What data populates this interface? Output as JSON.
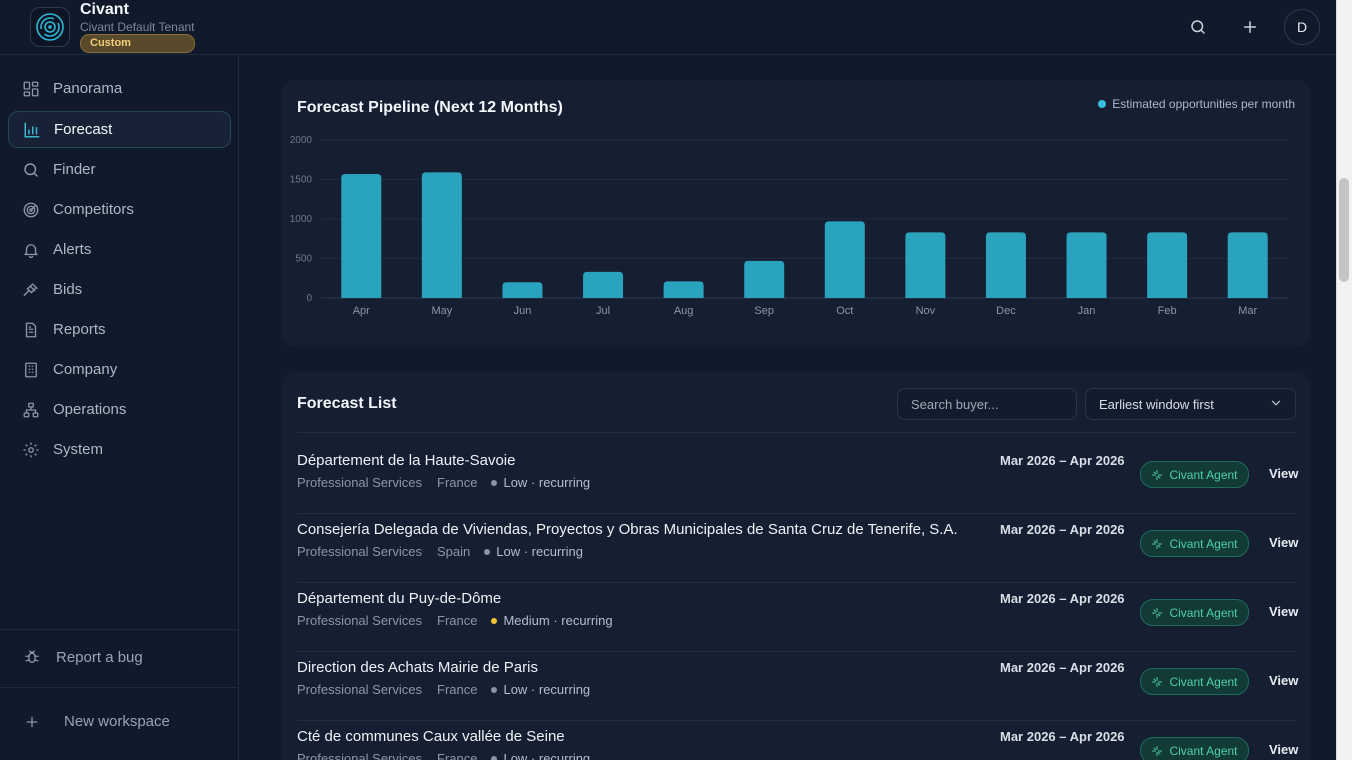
{
  "header": {
    "brand": "Civant",
    "tenant": "Civant Default Tenant",
    "plan_badge": "Custom",
    "avatar_initial": "D"
  },
  "sidebar": {
    "items": [
      {
        "label": "Panorama",
        "icon": "grid-icon",
        "active": false
      },
      {
        "label": "Forecast",
        "icon": "bar-chart-icon",
        "active": true
      },
      {
        "label": "Finder",
        "icon": "search-icon",
        "active": false
      },
      {
        "label": "Competitors",
        "icon": "radar-icon",
        "active": false
      },
      {
        "label": "Alerts",
        "icon": "bell-icon",
        "active": false
      },
      {
        "label": "Bids",
        "icon": "gavel-icon",
        "active": false
      },
      {
        "label": "Reports",
        "icon": "document-icon",
        "active": false
      },
      {
        "label": "Company",
        "icon": "building-icon",
        "active": false
      },
      {
        "label": "Operations",
        "icon": "network-icon",
        "active": false
      },
      {
        "label": "System",
        "icon": "gear-icon",
        "active": false
      }
    ],
    "report_bug": "Report a bug",
    "new_workspace": "New workspace"
  },
  "pipeline": {
    "title": "Forecast Pipeline (Next 12 Months)",
    "legend": "Estimated opportunities per month"
  },
  "chart_data": {
    "type": "bar",
    "title": "Forecast Pipeline (Next 12 Months)",
    "categories": [
      "Apr",
      "May",
      "Jun",
      "Jul",
      "Aug",
      "Sep",
      "Oct",
      "Nov",
      "Dec",
      "Jan",
      "Feb",
      "Mar"
    ],
    "series": [
      {
        "name": "Estimated opportunities per month",
        "values": [
          1570,
          1590,
          200,
          330,
          210,
          470,
          970,
          830,
          830,
          830,
          830,
          830
        ]
      }
    ],
    "yticks": [
      "0",
      "500",
      "1000",
      "1500",
      "2000"
    ],
    "ytick_values": [
      0,
      500,
      1000,
      1500,
      2000
    ],
    "ylim": [
      0,
      2000
    ],
    "grid": true,
    "legend_position": "top-right",
    "bar_color": "#2aa3bf"
  },
  "forecast_list": {
    "title": "Forecast List",
    "search_placeholder": "Search buyer...",
    "sort_label": "Earliest window first",
    "view_label": "View",
    "agent_label": "Civant Agent",
    "rows": [
      {
        "name": "Département de la Haute-Savoie",
        "category": "Professional Services",
        "country": "France",
        "probability": "Low · recurring",
        "prob_color": "#8a94a3",
        "window": "Mar 2026 – Apr 2026"
      },
      {
        "name": "Consejería Delegada de Viviendas, Proyectos y Obras Municipales de Santa Cruz de Tenerife, S.A.",
        "category": "Professional Services",
        "country": "Spain",
        "probability": "Low · recurring",
        "prob_color": "#8a94a3",
        "window": "Mar 2026 – Apr 2026"
      },
      {
        "name": "Département du Puy-de-Dôme",
        "category": "Professional Services",
        "country": "France",
        "probability": "Medium · recurring",
        "prob_color": "#f5c33b",
        "window": "Mar 2026 – Apr 2026"
      },
      {
        "name": "Direction des Achats Mairie de Paris",
        "category": "Professional Services",
        "country": "France",
        "probability": "Low · recurring",
        "prob_color": "#8a94a3",
        "window": "Mar 2026 – Apr 2026"
      },
      {
        "name": "Cté de communes Caux vallée de Seine",
        "category": "Professional Services",
        "country": "France",
        "probability": "Low · recurring",
        "prob_color": "#8a94a3",
        "window": "Mar 2026 – Apr 2026"
      }
    ]
  }
}
